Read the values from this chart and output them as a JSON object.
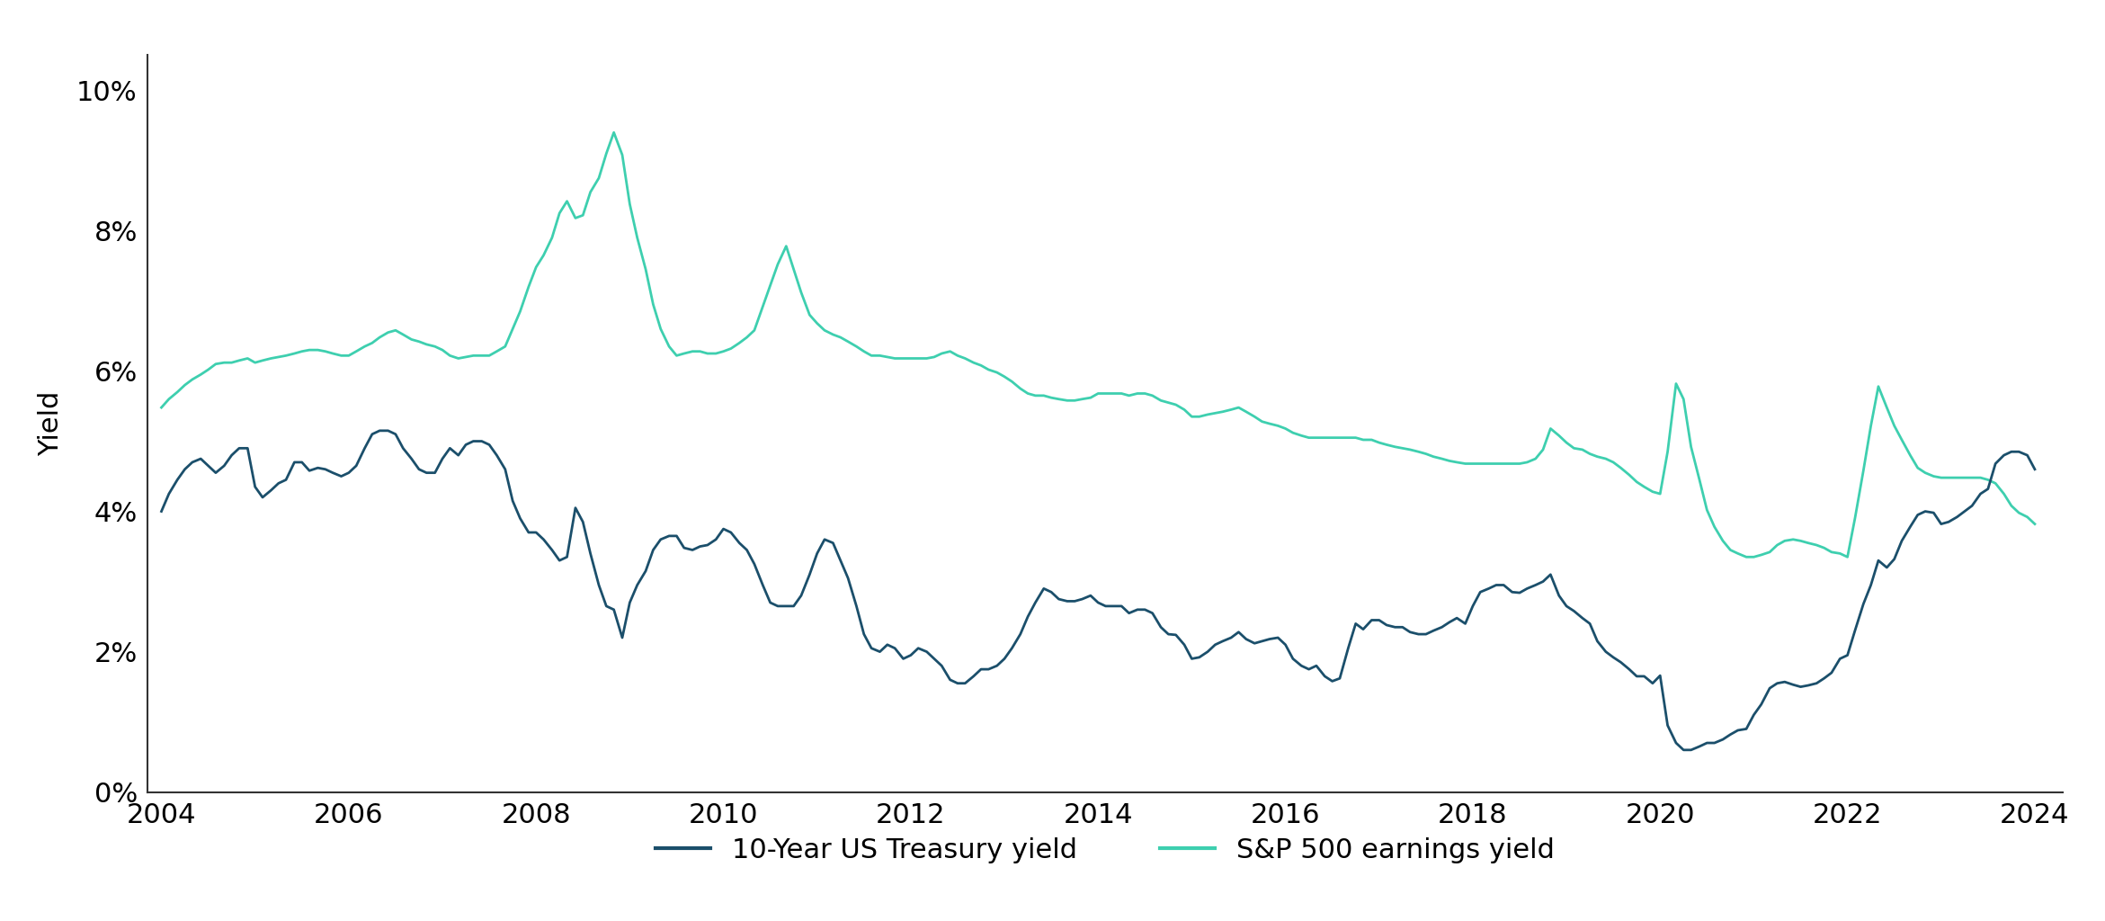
{
  "title": "",
  "ylabel": "Yield",
  "background_color": "#ffffff",
  "header_color": "#111111",
  "treasury_color": "#1b4f6b",
  "sp500_color": "#3ecfaf",
  "legend_labels": [
    "10-Year US Treasury yield",
    "S&P 500 earnings yield"
  ],
  "ylim": [
    0,
    0.105
  ],
  "yticks": [
    0,
    0.02,
    0.04,
    0.06,
    0.08,
    0.1
  ],
  "ytick_labels": [
    "0%",
    "2%",
    "4%",
    "6%",
    "8%",
    "10%"
  ],
  "xticks": [
    2004,
    2006,
    2008,
    2010,
    2012,
    2014,
    2016,
    2018,
    2020,
    2022,
    2024
  ],
  "treasury_data": {
    "dates": [
      2004.0,
      2004.08,
      2004.17,
      2004.25,
      2004.33,
      2004.42,
      2004.5,
      2004.58,
      2004.67,
      2004.75,
      2004.83,
      2004.92,
      2005.0,
      2005.08,
      2005.17,
      2005.25,
      2005.33,
      2005.42,
      2005.5,
      2005.58,
      2005.67,
      2005.75,
      2005.83,
      2005.92,
      2006.0,
      2006.08,
      2006.17,
      2006.25,
      2006.33,
      2006.42,
      2006.5,
      2006.58,
      2006.67,
      2006.75,
      2006.83,
      2006.92,
      2007.0,
      2007.08,
      2007.17,
      2007.25,
      2007.33,
      2007.42,
      2007.5,
      2007.58,
      2007.67,
      2007.75,
      2007.83,
      2007.92,
      2008.0,
      2008.08,
      2008.17,
      2008.25,
      2008.33,
      2008.42,
      2008.5,
      2008.58,
      2008.67,
      2008.75,
      2008.83,
      2008.92,
      2009.0,
      2009.08,
      2009.17,
      2009.25,
      2009.33,
      2009.42,
      2009.5,
      2009.58,
      2009.67,
      2009.75,
      2009.83,
      2009.92,
      2010.0,
      2010.08,
      2010.17,
      2010.25,
      2010.33,
      2010.42,
      2010.5,
      2010.58,
      2010.67,
      2010.75,
      2010.83,
      2010.92,
      2011.0,
      2011.08,
      2011.17,
      2011.25,
      2011.33,
      2011.42,
      2011.5,
      2011.58,
      2011.67,
      2011.75,
      2011.83,
      2011.92,
      2012.0,
      2012.08,
      2012.17,
      2012.25,
      2012.33,
      2012.42,
      2012.5,
      2012.58,
      2012.67,
      2012.75,
      2012.83,
      2012.92,
      2013.0,
      2013.08,
      2013.17,
      2013.25,
      2013.33,
      2013.42,
      2013.5,
      2013.58,
      2013.67,
      2013.75,
      2013.83,
      2013.92,
      2014.0,
      2014.08,
      2014.17,
      2014.25,
      2014.33,
      2014.42,
      2014.5,
      2014.58,
      2014.67,
      2014.75,
      2014.83,
      2014.92,
      2015.0,
      2015.08,
      2015.17,
      2015.25,
      2015.33,
      2015.42,
      2015.5,
      2015.58,
      2015.67,
      2015.75,
      2015.83,
      2015.92,
      2016.0,
      2016.08,
      2016.17,
      2016.25,
      2016.33,
      2016.42,
      2016.5,
      2016.58,
      2016.67,
      2016.75,
      2016.83,
      2016.92,
      2017.0,
      2017.08,
      2017.17,
      2017.25,
      2017.33,
      2017.42,
      2017.5,
      2017.58,
      2017.67,
      2017.75,
      2017.83,
      2017.92,
      2018.0,
      2018.08,
      2018.17,
      2018.25,
      2018.33,
      2018.42,
      2018.5,
      2018.58,
      2018.67,
      2018.75,
      2018.83,
      2018.92,
      2019.0,
      2019.08,
      2019.17,
      2019.25,
      2019.33,
      2019.42,
      2019.5,
      2019.58,
      2019.67,
      2019.75,
      2019.83,
      2019.92,
      2020.0,
      2020.08,
      2020.17,
      2020.25,
      2020.33,
      2020.42,
      2020.5,
      2020.58,
      2020.67,
      2020.75,
      2020.83,
      2020.92,
      2021.0,
      2021.08,
      2021.17,
      2021.25,
      2021.33,
      2021.42,
      2021.5,
      2021.58,
      2021.67,
      2021.75,
      2021.83,
      2021.92,
      2022.0,
      2022.08,
      2022.17,
      2022.25,
      2022.33,
      2022.42,
      2022.5,
      2022.58,
      2022.67,
      2022.75,
      2022.83,
      2022.92,
      2023.0,
      2023.08,
      2023.17,
      2023.25,
      2023.33,
      2023.42,
      2023.5,
      2023.58,
      2023.67,
      2023.75,
      2023.83,
      2023.92,
      2024.0
    ],
    "values": [
      0.04,
      0.0425,
      0.0445,
      0.046,
      0.047,
      0.0475,
      0.0465,
      0.0455,
      0.0465,
      0.048,
      0.049,
      0.049,
      0.0435,
      0.042,
      0.043,
      0.044,
      0.0445,
      0.047,
      0.047,
      0.0458,
      0.0462,
      0.046,
      0.0455,
      0.045,
      0.0455,
      0.0465,
      0.049,
      0.051,
      0.0515,
      0.0515,
      0.051,
      0.049,
      0.0475,
      0.046,
      0.0455,
      0.0455,
      0.0475,
      0.049,
      0.048,
      0.0495,
      0.05,
      0.05,
      0.0495,
      0.048,
      0.046,
      0.0415,
      0.039,
      0.037,
      0.037,
      0.036,
      0.0345,
      0.033,
      0.0335,
      0.0405,
      0.0385,
      0.034,
      0.0295,
      0.0265,
      0.026,
      0.022,
      0.027,
      0.0295,
      0.0315,
      0.0345,
      0.036,
      0.0365,
      0.0365,
      0.0348,
      0.0345,
      0.035,
      0.0352,
      0.036,
      0.0375,
      0.037,
      0.0355,
      0.0345,
      0.0325,
      0.0295,
      0.027,
      0.0265,
      0.0265,
      0.0265,
      0.028,
      0.031,
      0.034,
      0.036,
      0.0355,
      0.033,
      0.0305,
      0.0265,
      0.0225,
      0.0205,
      0.02,
      0.021,
      0.0205,
      0.019,
      0.0195,
      0.0205,
      0.02,
      0.019,
      0.018,
      0.016,
      0.0155,
      0.0155,
      0.0165,
      0.0175,
      0.0175,
      0.018,
      0.019,
      0.0205,
      0.0225,
      0.025,
      0.027,
      0.029,
      0.0285,
      0.0275,
      0.0272,
      0.0272,
      0.0275,
      0.028,
      0.027,
      0.0265,
      0.0265,
      0.0265,
      0.0255,
      0.026,
      0.026,
      0.0255,
      0.0235,
      0.0225,
      0.0224,
      0.021,
      0.019,
      0.0192,
      0.02,
      0.021,
      0.0215,
      0.022,
      0.0228,
      0.0218,
      0.0212,
      0.0215,
      0.0218,
      0.022,
      0.021,
      0.019,
      0.018,
      0.0175,
      0.018,
      0.0165,
      0.0158,
      0.0162,
      0.0205,
      0.024,
      0.0232,
      0.0245,
      0.0245,
      0.0238,
      0.0235,
      0.0235,
      0.0228,
      0.0225,
      0.0225,
      0.023,
      0.0235,
      0.0242,
      0.0248,
      0.024,
      0.0265,
      0.0285,
      0.029,
      0.0295,
      0.0295,
      0.0285,
      0.0284,
      0.029,
      0.0295,
      0.03,
      0.031,
      0.028,
      0.0265,
      0.0258,
      0.0248,
      0.024,
      0.0215,
      0.02,
      0.0192,
      0.0185,
      0.0175,
      0.0165,
      0.0165,
      0.0155,
      0.0166,
      0.0095,
      0.007,
      0.006,
      0.006,
      0.0065,
      0.007,
      0.007,
      0.0075,
      0.0082,
      0.0088,
      0.009,
      0.011,
      0.0125,
      0.0148,
      0.0155,
      0.0157,
      0.0153,
      0.015,
      0.0152,
      0.0155,
      0.0162,
      0.017,
      0.019,
      0.0195,
      0.023,
      0.0268,
      0.0295,
      0.033,
      0.032,
      0.0332,
      0.0358,
      0.0378,
      0.0395,
      0.04,
      0.0398,
      0.0382,
      0.0385,
      0.0392,
      0.04,
      0.0408,
      0.0425,
      0.0432,
      0.0468,
      0.048,
      0.0485,
      0.0485,
      0.048,
      0.046
    ]
  },
  "sp500_data": {
    "dates": [
      2004.0,
      2004.08,
      2004.17,
      2004.25,
      2004.33,
      2004.42,
      2004.5,
      2004.58,
      2004.67,
      2004.75,
      2004.83,
      2004.92,
      2005.0,
      2005.08,
      2005.17,
      2005.25,
      2005.33,
      2005.42,
      2005.5,
      2005.58,
      2005.67,
      2005.75,
      2005.83,
      2005.92,
      2006.0,
      2006.08,
      2006.17,
      2006.25,
      2006.33,
      2006.42,
      2006.5,
      2006.58,
      2006.67,
      2006.75,
      2006.83,
      2006.92,
      2007.0,
      2007.08,
      2007.17,
      2007.25,
      2007.33,
      2007.42,
      2007.5,
      2007.58,
      2007.67,
      2007.75,
      2007.83,
      2007.92,
      2008.0,
      2008.08,
      2008.17,
      2008.25,
      2008.33,
      2008.42,
      2008.5,
      2008.58,
      2008.67,
      2008.75,
      2008.83,
      2008.92,
      2009.0,
      2009.08,
      2009.17,
      2009.25,
      2009.33,
      2009.42,
      2009.5,
      2009.58,
      2009.67,
      2009.75,
      2009.83,
      2009.92,
      2010.0,
      2010.08,
      2010.17,
      2010.25,
      2010.33,
      2010.42,
      2010.5,
      2010.58,
      2010.67,
      2010.75,
      2010.83,
      2010.92,
      2011.0,
      2011.08,
      2011.17,
      2011.25,
      2011.33,
      2011.42,
      2011.5,
      2011.58,
      2011.67,
      2011.75,
      2011.83,
      2011.92,
      2012.0,
      2012.08,
      2012.17,
      2012.25,
      2012.33,
      2012.42,
      2012.5,
      2012.58,
      2012.67,
      2012.75,
      2012.83,
      2012.92,
      2013.0,
      2013.08,
      2013.17,
      2013.25,
      2013.33,
      2013.42,
      2013.5,
      2013.58,
      2013.67,
      2013.75,
      2013.83,
      2013.92,
      2014.0,
      2014.08,
      2014.17,
      2014.25,
      2014.33,
      2014.42,
      2014.5,
      2014.58,
      2014.67,
      2014.75,
      2014.83,
      2014.92,
      2015.0,
      2015.08,
      2015.17,
      2015.25,
      2015.33,
      2015.42,
      2015.5,
      2015.58,
      2015.67,
      2015.75,
      2015.83,
      2015.92,
      2016.0,
      2016.08,
      2016.17,
      2016.25,
      2016.33,
      2016.42,
      2016.5,
      2016.58,
      2016.67,
      2016.75,
      2016.83,
      2016.92,
      2017.0,
      2017.08,
      2017.17,
      2017.25,
      2017.33,
      2017.42,
      2017.5,
      2017.58,
      2017.67,
      2017.75,
      2017.83,
      2017.92,
      2018.0,
      2018.08,
      2018.17,
      2018.25,
      2018.33,
      2018.42,
      2018.5,
      2018.58,
      2018.67,
      2018.75,
      2018.83,
      2018.92,
      2019.0,
      2019.08,
      2019.17,
      2019.25,
      2019.33,
      2019.42,
      2019.5,
      2019.58,
      2019.67,
      2019.75,
      2019.83,
      2019.92,
      2020.0,
      2020.08,
      2020.17,
      2020.25,
      2020.33,
      2020.42,
      2020.5,
      2020.58,
      2020.67,
      2020.75,
      2020.83,
      2020.92,
      2021.0,
      2021.08,
      2021.17,
      2021.25,
      2021.33,
      2021.42,
      2021.5,
      2021.58,
      2021.67,
      2021.75,
      2021.83,
      2021.92,
      2022.0,
      2022.08,
      2022.17,
      2022.25,
      2022.33,
      2022.42,
      2022.5,
      2022.58,
      2022.67,
      2022.75,
      2022.83,
      2022.92,
      2023.0,
      2023.08,
      2023.17,
      2023.25,
      2023.33,
      2023.42,
      2023.5,
      2023.58,
      2023.67,
      2023.75,
      2023.83,
      2023.92,
      2024.0
    ],
    "values": [
      0.0548,
      0.056,
      0.057,
      0.058,
      0.0588,
      0.0595,
      0.0602,
      0.061,
      0.0612,
      0.0612,
      0.0615,
      0.0618,
      0.0612,
      0.0615,
      0.0618,
      0.062,
      0.0622,
      0.0625,
      0.0628,
      0.063,
      0.063,
      0.0628,
      0.0625,
      0.0622,
      0.0622,
      0.0628,
      0.0635,
      0.064,
      0.0648,
      0.0655,
      0.0658,
      0.0652,
      0.0645,
      0.0642,
      0.0638,
      0.0635,
      0.063,
      0.0622,
      0.0618,
      0.062,
      0.0622,
      0.0622,
      0.0622,
      0.0628,
      0.0635,
      0.066,
      0.0685,
      0.072,
      0.0748,
      0.0765,
      0.079,
      0.0825,
      0.0842,
      0.0818,
      0.0822,
      0.0855,
      0.0875,
      0.091,
      0.094,
      0.0908,
      0.0838,
      0.079,
      0.0745,
      0.0695,
      0.066,
      0.0635,
      0.0622,
      0.0625,
      0.0628,
      0.0628,
      0.0625,
      0.0625,
      0.0628,
      0.0632,
      0.064,
      0.0648,
      0.0658,
      0.0692,
      0.0722,
      0.0752,
      0.0778,
      0.0745,
      0.0712,
      0.068,
      0.0668,
      0.0658,
      0.0652,
      0.0648,
      0.0642,
      0.0635,
      0.0628,
      0.0622,
      0.0622,
      0.062,
      0.0618,
      0.0618,
      0.0618,
      0.0618,
      0.0618,
      0.062,
      0.0625,
      0.0628,
      0.0622,
      0.0618,
      0.0612,
      0.0608,
      0.0602,
      0.0598,
      0.0592,
      0.0585,
      0.0575,
      0.0568,
      0.0565,
      0.0565,
      0.0562,
      0.056,
      0.0558,
      0.0558,
      0.056,
      0.0562,
      0.0568,
      0.0568,
      0.0568,
      0.0568,
      0.0565,
      0.0568,
      0.0568,
      0.0565,
      0.0558,
      0.0555,
      0.0552,
      0.0545,
      0.0535,
      0.0535,
      0.0538,
      0.054,
      0.0542,
      0.0545,
      0.0548,
      0.0542,
      0.0535,
      0.0528,
      0.0525,
      0.0522,
      0.0518,
      0.0512,
      0.0508,
      0.0505,
      0.0505,
      0.0505,
      0.0505,
      0.0505,
      0.0505,
      0.0505,
      0.0502,
      0.0502,
      0.0498,
      0.0495,
      0.0492,
      0.049,
      0.0488,
      0.0485,
      0.0482,
      0.0478,
      0.0475,
      0.0472,
      0.047,
      0.0468,
      0.0468,
      0.0468,
      0.0468,
      0.0468,
      0.0468,
      0.0468,
      0.0468,
      0.047,
      0.0475,
      0.0488,
      0.0518,
      0.0508,
      0.0498,
      0.049,
      0.0488,
      0.0482,
      0.0478,
      0.0475,
      0.047,
      0.0462,
      0.0452,
      0.0442,
      0.0435,
      0.0428,
      0.0425,
      0.0485,
      0.0582,
      0.056,
      0.0492,
      0.0445,
      0.0402,
      0.0378,
      0.0358,
      0.0345,
      0.034,
      0.0335,
      0.0335,
      0.0338,
      0.0342,
      0.0352,
      0.0358,
      0.036,
      0.0358,
      0.0355,
      0.0352,
      0.0348,
      0.0342,
      0.034,
      0.0335,
      0.039,
      0.0458,
      0.0522,
      0.0578,
      0.0548,
      0.0522,
      0.0502,
      0.048,
      0.0462,
      0.0455,
      0.045,
      0.0448,
      0.0448,
      0.0448,
      0.0448,
      0.0448,
      0.0448,
      0.0445,
      0.044,
      0.0425,
      0.0408,
      0.0398,
      0.0392,
      0.0382
    ]
  }
}
